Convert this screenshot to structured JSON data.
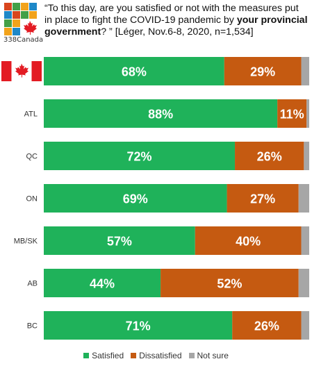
{
  "logo": {
    "text": "338Canada",
    "tiles": [
      "#d9461e",
      "#43a047",
      "#f2a31b",
      "#1e88c8",
      "#1e88c8",
      "#d9461e",
      "#43a047",
      "#f2a31b",
      "#43a047",
      "#f2a31b",
      "#1e88c8",
      "#d9461e",
      "#f2a31b",
      "#1e88c8",
      "#d9461e",
      "#43a047"
    ],
    "leaf_color": "#e31b23"
  },
  "question": {
    "part1": "“To this day, are you satisfied or not with the measures put in place to fight the COVID-19 pandemic by ",
    "bold": "your provincial government",
    "part2": "? ” [Léger, Nov.6-8, 2020, n=1,534]"
  },
  "colors": {
    "satisfied": "#1fb25a",
    "dissatisfied": "#c55a11",
    "not_sure": "#a6a6a6"
  },
  "chart_data": {
    "type": "bar",
    "orientation": "horizontal",
    "stacked": true,
    "categories": [
      "Canada",
      "ATL",
      "QC",
      "ON",
      "MB/SK",
      "AB",
      "BC"
    ],
    "first_category_icon": "canada-flag",
    "series": [
      {
        "name": "Satisfied",
        "values": [
          68,
          88,
          72,
          69,
          57,
          44,
          71
        ]
      },
      {
        "name": "Dissatisfied",
        "values": [
          29,
          11,
          26,
          27,
          40,
          52,
          26
        ]
      },
      {
        "name": "Not sure",
        "values": [
          3,
          1,
          2,
          4,
          3,
          4,
          3
        ]
      }
    ],
    "data_labels": {
      "Satisfied": [
        "68%",
        "88%",
        "72%",
        "69%",
        "57%",
        "44%",
        "71%"
      ],
      "Dissatisfied": [
        "29%",
        "11%",
        "26%",
        "27%",
        "40%",
        "52%",
        "26%"
      ]
    },
    "xlim": [
      0,
      100
    ],
    "legend": "bottom-center"
  }
}
